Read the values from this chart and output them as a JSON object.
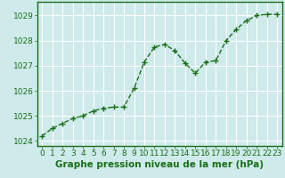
{
  "x": [
    0,
    1,
    2,
    3,
    4,
    5,
    6,
    7,
    8,
    9,
    10,
    11,
    12,
    13,
    14,
    15,
    16,
    17,
    18,
    19,
    20,
    21,
    22,
    23
  ],
  "y": [
    1024.2,
    1024.5,
    1024.7,
    1024.9,
    1025.0,
    1025.2,
    1025.3,
    1025.35,
    1025.35,
    1026.1,
    1027.15,
    1027.75,
    1027.85,
    1027.6,
    1027.1,
    1026.7,
    1027.15,
    1027.2,
    1028.0,
    1028.45,
    1028.8,
    1029.0,
    1029.05,
    1029.05
  ],
  "line_color": "#1a6e1a",
  "marker": "+",
  "marker_size": 4,
  "marker_lw": 1.0,
  "bg_color": "#ceeaea",
  "grid_color": "#ffffff",
  "xlabel": "Graphe pression niveau de la mer (hPa)",
  "xlabel_fontsize": 7.5,
  "xlabel_color": "#1a6e1a",
  "ylim": [
    1023.8,
    1029.55
  ],
  "yticks": [
    1024,
    1025,
    1026,
    1027,
    1028,
    1029
  ],
  "xtick_labels": [
    "0",
    "1",
    "2",
    "3",
    "4",
    "5",
    "6",
    "7",
    "8",
    "9",
    "10",
    "11",
    "12",
    "13",
    "14",
    "15",
    "16",
    "17",
    "18",
    "19",
    "20",
    "21",
    "22",
    "23"
  ],
  "tick_fontsize": 6.5,
  "tick_color": "#1a6e1a",
  "spine_color": "#1a6e1a",
  "linewidth": 1.0
}
